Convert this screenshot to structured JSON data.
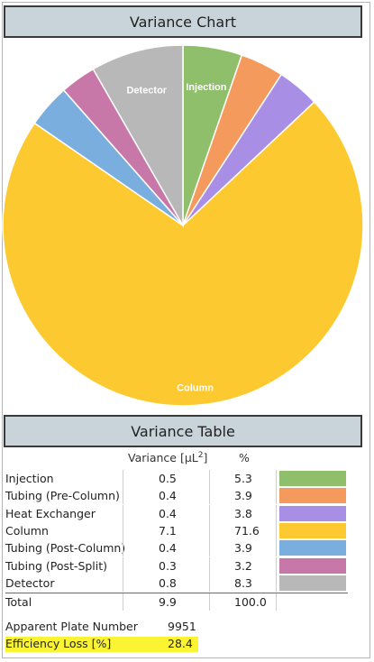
{
  "chart_title": "Variance Chart",
  "table_title": "Variance Table",
  "table_headers": {
    "variance": "Variance [µL",
    "variance_sup": "2",
    "variance_close": "]",
    "percent": "%"
  },
  "chart_data": {
    "type": "pie",
    "title": "Variance Chart",
    "slices": [
      {
        "name": "Injection",
        "variance": "0.5",
        "percent": 5.3,
        "color": "#8fbf6a",
        "label": "Injection"
      },
      {
        "name": "Tubing (Pre-Column)",
        "variance": "0.4",
        "percent": 3.9,
        "color": "#f39a5c",
        "label": ""
      },
      {
        "name": "Heat Exchanger",
        "variance": "0.4",
        "percent": 3.8,
        "color": "#a98ee6",
        "label": ""
      },
      {
        "name": "Column",
        "variance": "7.1",
        "percent": 71.6,
        "color": "#fdc931",
        "label": "Column"
      },
      {
        "name": "Tubing (Post-Column)",
        "variance": "0.4",
        "percent": 3.9,
        "color": "#7aaedf",
        "label": ""
      },
      {
        "name": "Tubing (Post-Split)",
        "variance": "0.3",
        "percent": 3.2,
        "color": "#c878a8",
        "label": ""
      },
      {
        "name": "Detector",
        "variance": "0.8",
        "percent": 8.3,
        "color": "#b8b8b8",
        "label": "Detector"
      }
    ],
    "start": "12 o'clock",
    "direction": "clockwise"
  },
  "total": {
    "label": "Total",
    "variance": "9.9",
    "percent": "100.0"
  },
  "rows_pct_text": [
    "5.3",
    "3.9",
    "3.8",
    "71.6",
    "3.9",
    "3.2",
    "8.3"
  ],
  "plate": {
    "label": "Apparent Plate Number",
    "value": "9951"
  },
  "efficiency": {
    "label": "Efficiency Loss [%]",
    "value": "28.4"
  }
}
